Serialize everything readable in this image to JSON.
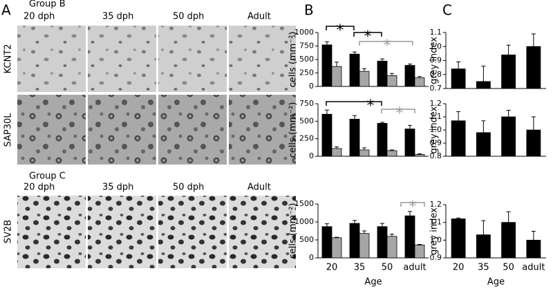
{
  "figure": {
    "panels": [
      "A",
      "B",
      "C"
    ],
    "groups": [
      "Group B",
      "Group C"
    ],
    "columns_b": [
      "20 dph",
      "35 dph",
      "50 dph",
      "Adult"
    ],
    "columns_c": [
      "20 dph",
      "35 dph",
      "50 dph",
      "Adult"
    ],
    "rows": [
      "KCNT2",
      "SAP30L",
      "SV2B"
    ]
  },
  "chart_data": [
    {
      "type": "bar",
      "categories": [
        null,
        null,
        null,
        null
      ],
      "y_label": "cells (mm⁻²)",
      "ylim": [
        0,
        1000
      ],
      "yticks": [
        0,
        250,
        500,
        750,
        1000
      ],
      "series": [
        {
          "color": "#000000",
          "values": [
            770,
            600,
            470,
            390
          ],
          "errors": [
            60,
            40,
            40,
            25
          ]
        },
        {
          "color": "#a6a6a6",
          "values": [
            370,
            280,
            200,
            160
          ],
          "errors": [
            80,
            50,
            40,
            25
          ]
        }
      ],
      "annotations": [
        "*",
        "*",
        "*"
      ]
    },
    {
      "type": "bar",
      "categories": [
        null,
        null,
        null,
        null
      ],
      "y_label": "cells (mm⁻²)",
      "ylim": [
        0,
        750
      ],
      "yticks": [
        0,
        250,
        500,
        750
      ],
      "series": [
        {
          "color": "#000000",
          "values": [
            600,
            530,
            470,
            390
          ],
          "errors": [
            60,
            50,
            15,
            50
          ]
        },
        {
          "color": "#a6a6a6",
          "values": [
            110,
            90,
            80,
            25
          ],
          "errors": [
            25,
            30,
            10,
            10
          ]
        }
      ],
      "annotations": [
        "*",
        "*"
      ]
    },
    {
      "type": "bar",
      "categories": [
        "20",
        "35",
        "50",
        "adult"
      ],
      "x_label": "Age",
      "y_label": "cells (mm⁻²)",
      "ylim": [
        0,
        1500
      ],
      "yticks": [
        0,
        500,
        1000,
        1500
      ],
      "series": [
        {
          "color": "#000000",
          "values": [
            870,
            960,
            870,
            1170
          ],
          "errors": [
            80,
            80,
            90,
            120
          ]
        },
        {
          "color": "#a6a6a6",
          "values": [
            560,
            680,
            600,
            360
          ],
          "errors": [
            15,
            70,
            60,
            15
          ]
        }
      ],
      "annotations": [
        "*"
      ]
    },
    {
      "type": "bar",
      "categories": [
        null,
        null,
        null,
        null
      ],
      "y_label": "grey index",
      "ylim": [
        0.7,
        1.1
      ],
      "yticks": [
        0.7,
        0.8,
        0.9,
        {
          "value": 1,
          "label": "1.0"
        },
        1.1
      ],
      "series": [
        {
          "color": "#000000",
          "values": [
            0.84,
            0.75,
            0.94,
            1.0
          ],
          "errors": [
            0.05,
            0.11,
            0.07,
            0.09
          ]
        }
      ]
    },
    {
      "type": "bar",
      "categories": [
        null,
        null,
        null,
        null
      ],
      "y_label": "grey index",
      "ylim": [
        0.8,
        1.2
      ],
      "yticks": [
        0.8,
        0.9,
        {
          "value": 1,
          "label": "1.0"
        },
        1.1,
        1.2
      ],
      "series": [
        {
          "color": "#000000",
          "values": [
            1.07,
            0.98,
            1.1,
            1.0
          ],
          "errors": [
            0.07,
            0.09,
            0.05,
            0.1
          ]
        }
      ]
    },
    {
      "type": "bar",
      "categories": [
        "20",
        "35",
        "50",
        "adult"
      ],
      "x_label": "Age",
      "y_label": "grey index",
      "ylim": [
        0.9,
        1.2
      ],
      "yticks": [
        0.9,
        {
          "value": 1,
          "label": "1.0"
        },
        1.1,
        1.2
      ],
      "series": [
        {
          "color": "#000000",
          "values": [
            1.12,
            1.03,
            1.1,
            1.0
          ],
          "errors": [
            0.005,
            0.08,
            0.06,
            0.05
          ]
        }
      ]
    }
  ]
}
